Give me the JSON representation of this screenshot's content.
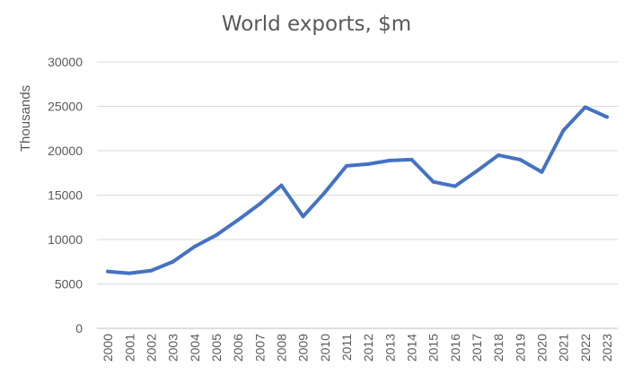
{
  "chart_data": {
    "type": "line",
    "title": "World exports, $m",
    "xlabel": "",
    "ylabel": "Thousands",
    "ylim": [
      0,
      30000
    ],
    "yticks": [
      0,
      5000,
      10000,
      15000,
      20000,
      25000,
      30000
    ],
    "grid": true,
    "legend": "none",
    "line_color": "#4472C4",
    "categories": [
      "2000",
      "2001",
      "2002",
      "2003",
      "2004",
      "2005",
      "2006",
      "2007",
      "2008",
      "2009",
      "2010",
      "2011",
      "2012",
      "2013",
      "2014",
      "2015",
      "2016",
      "2017",
      "2018",
      "2019",
      "2020",
      "2021",
      "2022",
      "2023"
    ],
    "series": [
      {
        "values": [
          6400,
          6200,
          6500,
          7500,
          9200,
          10500,
          12200,
          14000,
          16100,
          12600,
          15300,
          18300,
          18500,
          18900,
          19000,
          16500,
          16000,
          17700,
          19500,
          19000,
          17600,
          22300,
          24900,
          23800
        ]
      }
    ]
  }
}
